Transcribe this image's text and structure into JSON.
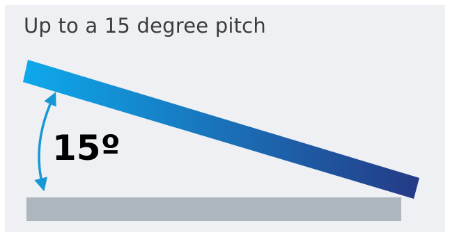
{
  "title": "Up to a 15 degree pitch",
  "angle": {
    "label": "15º",
    "degrees": 15
  },
  "colors": {
    "background": "#eef0f3",
    "base": "#adb6bc",
    "panel_start": "#0ea9ec",
    "panel_end": "#253a86",
    "arrow": "#1798d6",
    "label": "#000000",
    "title": "#3c3c3c"
  }
}
